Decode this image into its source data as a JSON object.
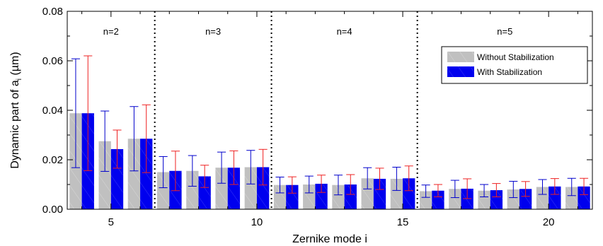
{
  "chart_data": {
    "type": "bar",
    "xlabel": "Zernike mode i",
    "ylabel_main": "Dynamic part of a",
    "ylabel_sub": "i",
    "ylabel_unit": "(µm)",
    "ylim": [
      0,
      0.08
    ],
    "yticks": [
      "0.00",
      "0.02",
      "0.04",
      "0.06",
      "0.08"
    ],
    "xlim": [
      3.5,
      21.5
    ],
    "xticks": [
      5,
      10,
      15,
      20
    ],
    "x": [
      4,
      5,
      6,
      7,
      8,
      9,
      10,
      11,
      12,
      13,
      14,
      15,
      16,
      17,
      18,
      19,
      20,
      21
    ],
    "series": [
      {
        "name": "Without Stabilization",
        "color": "#c0c0c0",
        "errcolor": "#0000cc",
        "values": [
          0.0388,
          0.0275,
          0.0285,
          0.015,
          0.0155,
          0.0168,
          0.017,
          0.0098,
          0.01,
          0.0098,
          0.0125,
          0.0123,
          0.0073,
          0.0082,
          0.0075,
          0.008,
          0.009,
          0.009
        ],
        "errors": [
          0.022,
          0.0122,
          0.013,
          0.0063,
          0.0062,
          0.0063,
          0.0068,
          0.0032,
          0.0034,
          0.004,
          0.0043,
          0.0047,
          0.0025,
          0.0035,
          0.0025,
          0.0033,
          0.003,
          0.0035
        ]
      },
      {
        "name": "With Stabilization",
        "color": "#0000ee",
        "errcolor": "#ee2222",
        "values": [
          0.0388,
          0.0243,
          0.0285,
          0.0155,
          0.0133,
          0.0168,
          0.017,
          0.0098,
          0.0103,
          0.01,
          0.0123,
          0.0125,
          0.0075,
          0.0083,
          0.0077,
          0.0082,
          0.0092,
          0.0092
        ],
        "errors": [
          0.0232,
          0.0077,
          0.0137,
          0.008,
          0.0045,
          0.0068,
          0.0072,
          0.0033,
          0.0035,
          0.004,
          0.0043,
          0.005,
          0.0025,
          0.004,
          0.0027,
          0.003,
          0.0032,
          0.0033
        ]
      }
    ],
    "separators": [
      6.5,
      10.5,
      15.5
    ],
    "groups": [
      {
        "label": "n=2",
        "x": 5
      },
      {
        "label": "n=3",
        "x": 8.5
      },
      {
        "label": "n=4",
        "x": 13
      },
      {
        "label": "n=5",
        "x": 18.5
      }
    ],
    "legend_position": "top-right"
  }
}
